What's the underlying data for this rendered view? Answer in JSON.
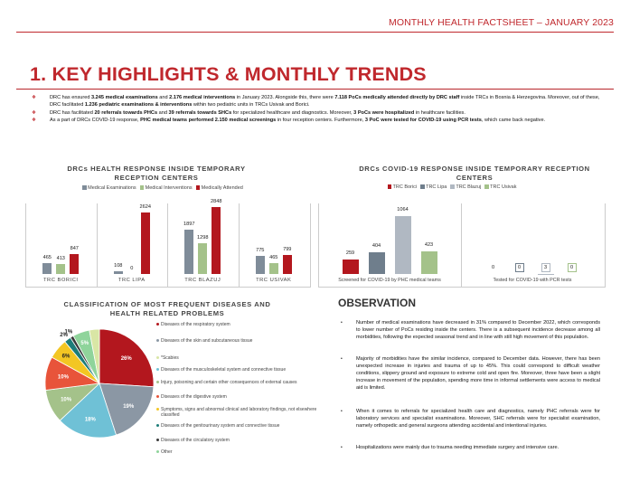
{
  "header": {
    "title": "MONTHLY HEALTH FACTSHEET – JANUARY 2023"
  },
  "section": {
    "title": "1. KEY HIGHLIGHTS & MONTHLY TRENDS"
  },
  "bullets": [
    {
      "parts": [
        [
          "DRC has ensured ",
          false
        ],
        [
          "3.245 medical examinations",
          true
        ],
        [
          " and ",
          false
        ],
        [
          "2.176 medical interventions",
          true
        ],
        [
          " in January 2023. Alongside this, there were ",
          false
        ],
        [
          "7.118 PoCs medically attended directly by DRC staff",
          true
        ],
        [
          " inside TRCs in Bosnia & Herzegovina. Moreover, out of these, DRC facilitated ",
          false
        ],
        [
          "1.236 pediatric examinations & interventions",
          true
        ],
        [
          " within two pediatric units in TRCs Usivak and Borici.",
          false
        ]
      ]
    },
    {
      "parts": [
        [
          "DRC has facilitated ",
          false
        ],
        [
          "20 referrals towards PHCs",
          true
        ],
        [
          " and ",
          false
        ],
        [
          "39 referrals towards SHCs",
          true
        ],
        [
          " for specialized healthcare and diagnostics. Moreover, ",
          false
        ],
        [
          "3 PoCs were hospitalized",
          true
        ],
        [
          " in healthcare facilities.",
          false
        ]
      ]
    },
    {
      "parts": [
        [
          "As a part of DRCs COVID-19 response, ",
          false
        ],
        [
          "PHC medical teams performed 2.150 medical screenings",
          true
        ],
        [
          " in four reception centers. Furthermore, ",
          false
        ],
        [
          "3 PoC were tested for COVID-19 using PCR tests",
          true
        ],
        [
          ", which came back negative.",
          false
        ]
      ]
    }
  ],
  "colors": {
    "exam": "#7f8c99",
    "interv": "#a4c28a",
    "attended": "#b3171e",
    "borici": "#b3171e",
    "lipa": "#6f7e8c",
    "blazuj": "#b0b8c2",
    "usivak": "#a4c28a"
  },
  "health_chart": {
    "title": "DRCs HEALTH RESPONSE INSIDE TEMPORARY RECEPTION CENTERS",
    "legend": [
      "Medical Examinations",
      "Medical Interventions",
      "Medically Attended"
    ],
    "categories": [
      "TRC BORICI",
      "TRC LIPA",
      "TRC BLAZUJ",
      "TRC USIVAK"
    ],
    "series": [
      {
        "name": "Medical Examinations",
        "values": [
          465,
          108,
          1897,
          775
        ]
      },
      {
        "name": "Medical Interventions",
        "values": [
          413,
          0,
          1298,
          465
        ]
      },
      {
        "name": "Medically Attended",
        "values": [
          847,
          2624,
          2848,
          799
        ]
      }
    ]
  },
  "covid_chart": {
    "title": "DRCs COVID-19 RESPONSE INSIDE TEMPORARY RECEPTION CENTERS",
    "legend": [
      "TRC Borici",
      "TRC Lipa",
      "TRC Blazuj",
      "TRC Usivak"
    ],
    "categories": [
      "Screened for COVID-19 by PHC medical teams",
      "Tested for COVID-19 with PCR tests"
    ],
    "series": [
      {
        "name": "TRC Borici",
        "values": [
          259,
          0
        ]
      },
      {
        "name": "TRC Lipa",
        "values": [
          404,
          0
        ]
      },
      {
        "name": "TRC Blazuj",
        "values": [
          1064,
          3
        ]
      },
      {
        "name": "TRC Usivak",
        "values": [
          423,
          0
        ]
      }
    ]
  },
  "pie_chart": {
    "title": "CLASSIFICATION OF MOST FREQUENT DISEASES AND HEALTH RELATED PROBLEMS",
    "slices": [
      {
        "label": "Diseases of the respiratory system",
        "value": 26,
        "text": "26%",
        "color": "#b3171e"
      },
      {
        "label": "Diseases of the skin and subcutaneous tissue",
        "value": 19,
        "text": "19%",
        "color": "#8b97a4"
      },
      {
        "label": "Diseases of the musculoskeletal system and connective tissue",
        "value": 18,
        "text": "18%",
        "color": "#6fc1d6"
      },
      {
        "label": "Injury, poisoning and certain other consequences of external causes",
        "value": 10,
        "text": "10%",
        "color": "#a4c28a"
      },
      {
        "label": "Diseases of the digestive system",
        "value": 10,
        "text": "10%",
        "color": "#e8543a"
      },
      {
        "label": "Symptoms, signs and abnormal clinical and laboratory findings, not elsewhere classified",
        "value": 6,
        "text": "6%",
        "color": "#f3c623"
      },
      {
        "label": "Diseases of the genitourinary system and connective tissue",
        "value": 2,
        "text": "2%",
        "color": "#1d7d79"
      },
      {
        "label": "Diseases of the circulatory system",
        "value": 1,
        "text": "1%",
        "color": "#3a3a3a"
      },
      {
        "label": "Other",
        "value": 5,
        "text": "5%",
        "color": "#8fd49b"
      },
      {
        "label": "*Scabies",
        "value": 3,
        "text": "",
        "color": "#d9e6a5"
      }
    ],
    "legend_order": [
      "Diseases of the respiratory system",
      "Diseases of the skin and subcutaneous tissue",
      "*Scabies",
      "Diseases of the musculoskeletal system and connective tissue",
      "Injury, poisoning and certain other consequences of external causes",
      "Diseases of the digestive system",
      "Symptoms, signs and abnormal clinical and laboratory findings, not elsewhere classified",
      "Diseases of the genitourinary system and connective tissue",
      "Diseases of the circulatory system",
      "Other"
    ]
  },
  "observation": {
    "title": "OBSERVATION",
    "items": [
      "Number of medical examinations have decreased in 31% compared to December 2022, which corresponds to lower number of PoCs residing inside the centers. There is a subsequent incidence decrease among all morbidities, following the expected seasonal trend and in line with still high movement of this population.",
      "Majority of morbidities have the similar incidence, compared to December data. However, there has been unexpected increase in injuries and trauma of up to 45%. This could correspond to difficult weather conditions, slippery ground and exposure to extreme cold and open fire. Moreover, three have been a slight increase in movement of the population, spending more time in informal settlements were access to medical aid is limited.",
      "When it comes to referrals for specialized health care and diagnostics, namely PHC referrals were for laboratory services and specialist examinations. Moreover, SHC referrals were for specialist examination, namely orthopedic and general surgeons attending accidental and intentional injuries.",
      "Hospitalizations were mainly due to trauma needing immediate surgery and intensive care."
    ]
  }
}
